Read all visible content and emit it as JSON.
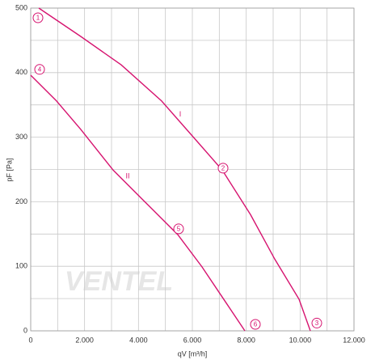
{
  "chart_data": {
    "type": "line",
    "x_label": "qV [m³/h]",
    "y_label": "pF [Pa]",
    "watermark": "VENTEL",
    "xlim": [
      0,
      12000
    ],
    "ylim": [
      0,
      500
    ],
    "xticks": [
      0,
      {
        "value": 2000,
        "label": "2.000"
      },
      {
        "value": 4000,
        "label": "4.000"
      },
      {
        "value": 6000,
        "label": "6.000"
      },
      {
        "value": 8000,
        "label": "8.000"
      },
      {
        "value": 10000,
        "label": "10.000"
      },
      {
        "value": 12000,
        "label": "12.000"
      }
    ],
    "yticks": [
      0,
      100,
      200,
      300,
      400,
      500
    ],
    "minor_xticks": [
      1000,
      3000,
      5000,
      7000,
      9000,
      11000
    ],
    "minor_yticks": [
      50,
      150,
      250,
      350,
      450
    ],
    "grid": true,
    "series": [
      {
        "name": "I",
        "color": "#d6136f",
        "label_x": 5550,
        "label_y": 335,
        "x": [
          300,
          1860,
          3360,
          4860,
          6060,
          7110,
          8160,
          9060,
          9960,
          10380
        ],
        "values": [
          500,
          456,
          412,
          356,
          299,
          249,
          180,
          111,
          49,
          0
        ]
      },
      {
        "name": "II",
        "color": "#d6136f",
        "label_x": 3600,
        "label_y": 239,
        "x": [
          0,
          960,
          1860,
          3060,
          4260,
          5460,
          6360,
          7260,
          7950
        ],
        "values": [
          396,
          356,
          312,
          249,
          199,
          149,
          99,
          43,
          0
        ]
      }
    ],
    "points": [
      {
        "label": "1",
        "x": 270,
        "y": 485
      },
      {
        "label": "2",
        "x": 7140,
        "y": 252
      },
      {
        "label": "3",
        "x": 10620,
        "y": 12
      },
      {
        "label": "4",
        "x": 330,
        "y": 405
      },
      {
        "label": "5",
        "x": 5490,
        "y": 158
      },
      {
        "label": "6",
        "x": 8340,
        "y": 10
      }
    ]
  }
}
